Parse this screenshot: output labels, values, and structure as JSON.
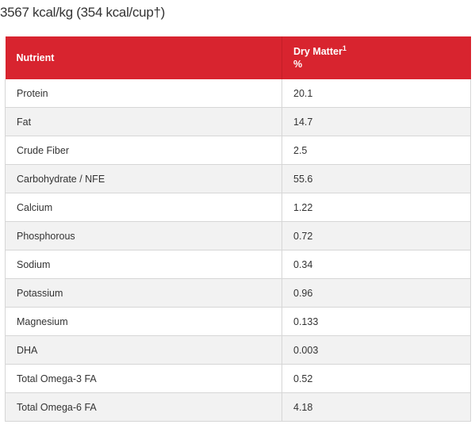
{
  "caloric_content": "3567 kcal/kg (354 kcal/cup†)",
  "table": {
    "header": {
      "nutrient": "Nutrient",
      "dry_matter_label": "Dry Matter",
      "dry_matter_footnote": "1",
      "dry_matter_unit": "%"
    },
    "rows": [
      {
        "nutrient": "Protein",
        "value": "20.1"
      },
      {
        "nutrient": "Fat",
        "value": "14.7"
      },
      {
        "nutrient": "Crude Fiber",
        "value": "2.5"
      },
      {
        "nutrient": "Carbohydrate / NFE",
        "value": "55.6"
      },
      {
        "nutrient": "Calcium",
        "value": "1.22"
      },
      {
        "nutrient": "Phosphorous",
        "value": "0.72"
      },
      {
        "nutrient": "Sodium",
        "value": "0.34"
      },
      {
        "nutrient": "Potassium",
        "value": "0.96"
      },
      {
        "nutrient": "Magnesium",
        "value": "0.133"
      },
      {
        "nutrient": "DHA",
        "value": "0.003"
      },
      {
        "nutrient": "Total Omega-3 FA",
        "value": "0.52"
      },
      {
        "nutrient": "Total Omega-6 FA",
        "value": "4.18"
      }
    ]
  },
  "colors": {
    "header_bg": "#d8242f",
    "header_text": "#ffffff",
    "alt_row_bg": "#f2f2f2",
    "border": "#d6d6d6"
  }
}
